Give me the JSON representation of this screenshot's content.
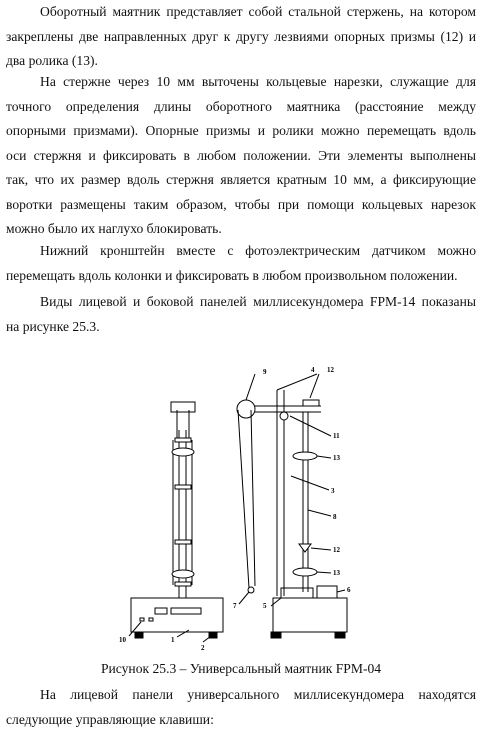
{
  "paragraphs": [
    {
      "lines": [
        "Оборотный маятник представляет собой стальной стержень, на котором",
        "закреплены две направленных друг к другу лезвиями опорных призмы (12) и",
        "два ролика (13)."
      ]
    },
    {
      "lines": [
        "На стержне через 10 мм выточены кольцевые нарезки, служащие для",
        "точного определения длины оборотного маятника (расстояние между",
        "опорными призмами). Опорные призмы и ролики можно перемещать вдоль",
        "оси стержня и фиксировать в любом положении. Эти элементы выполнены",
        "так, что их размер вдоль стержня является кратным 10 мм, а фиксирующие",
        "воротки размещены таким образом, чтобы при помощи кольцевых нарезок",
        "можно было их наглухо блокировать."
      ]
    },
    {
      "lines": [
        "Нижний кронштейн вместе с фотоэлектрическим датчиком можно",
        "перемещать вдоль колонки и фиксировать в любом произвольном положении."
      ]
    },
    {
      "lines": [
        "Виды лицевой и боковой панелей миллисекундомера FPM-14 показаны",
        "на рисунке 25.3."
      ]
    },
    {
      "lines": [
        "На лицевой панели универсального миллисекундомера находятся",
        "следующие управляющие клавиши:"
      ]
    }
  ],
  "figure": {
    "caption": "Рисунок 25.3 – Универсальный маятник FPM-04",
    "labels": {
      "l1": "1",
      "l2": "2",
      "l3": "3",
      "l4": "4",
      "l5": "5",
      "l6": "6",
      "l7": "7",
      "l8": "8",
      "l9": "9",
      "l10": "10",
      "l11": "11",
      "l12a": "12",
      "l12b": "12",
      "l13a": "13",
      "l13b": "13"
    }
  }
}
